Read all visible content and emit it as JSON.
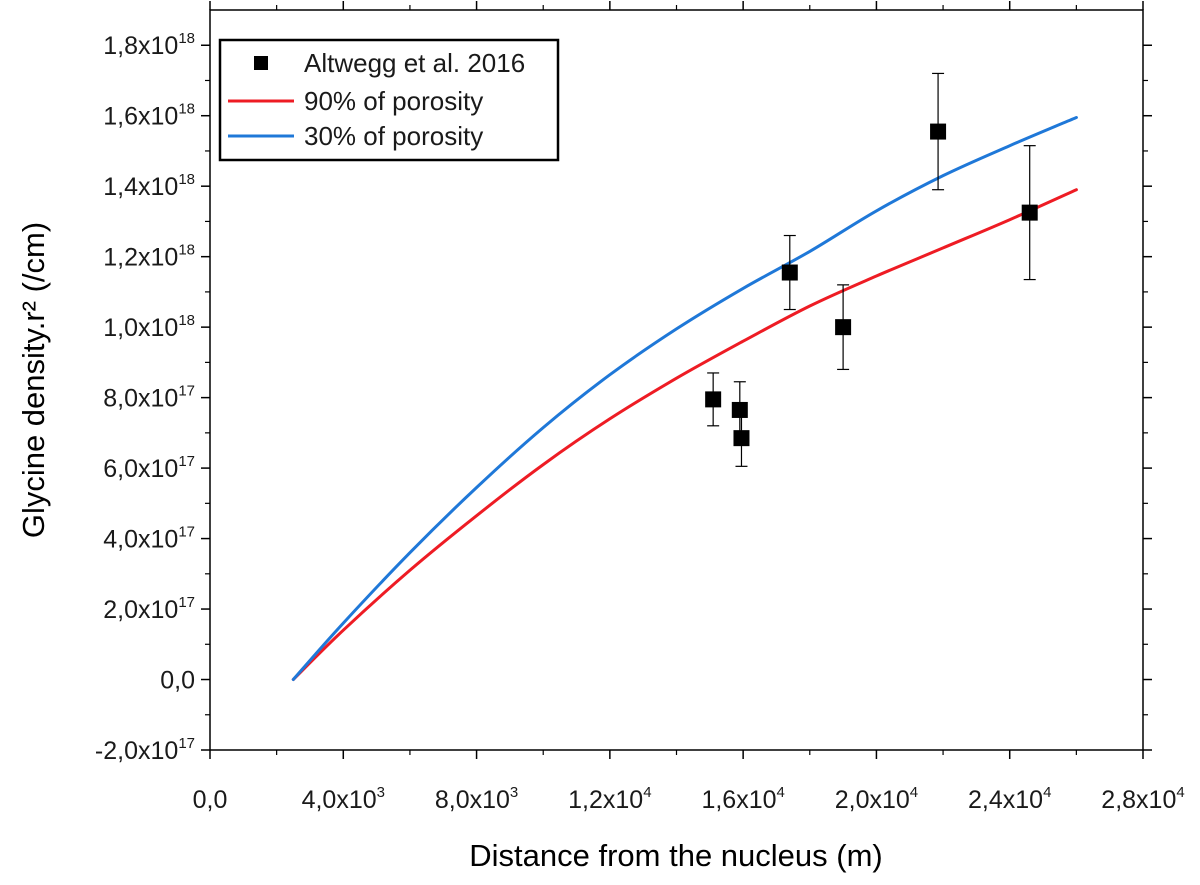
{
  "chart_data": {
    "type": "scatter",
    "xlabel": "Distance from the nucleus (m)",
    "ylabel": "Glycine density.r² (/cm)",
    "xlim": [
      0,
      28000
    ],
    "ylim": [
      -2e+17,
      1.9e+18
    ],
    "grid": false,
    "legend_position": "top-left",
    "x_ticks": [
      {
        "value": 0,
        "mant": "0,0",
        "exp": ""
      },
      {
        "value": 4000,
        "mant": "4,0x10",
        "exp": "3"
      },
      {
        "value": 8000,
        "mant": "8,0x10",
        "exp": "3"
      },
      {
        "value": 12000,
        "mant": "1,2x10",
        "exp": "4"
      },
      {
        "value": 16000,
        "mant": "1,6x10",
        "exp": "4"
      },
      {
        "value": 20000,
        "mant": "2,0x10",
        "exp": "4"
      },
      {
        "value": 24000,
        "mant": "2,4x10",
        "exp": "4"
      },
      {
        "value": 28000,
        "mant": "2,8x10",
        "exp": "4"
      }
    ],
    "y_ticks": [
      {
        "value": -2e+17,
        "mant": "-2,0x10",
        "exp": "17"
      },
      {
        "value": 0,
        "mant": "0,0",
        "exp": ""
      },
      {
        "value": 2e+17,
        "mant": "2,0x10",
        "exp": "17"
      },
      {
        "value": 4e+17,
        "mant": "4,0x10",
        "exp": "17"
      },
      {
        "value": 6e+17,
        "mant": "6,0x10",
        "exp": "17"
      },
      {
        "value": 8e+17,
        "mant": "8,0x10",
        "exp": "17"
      },
      {
        "value": 1e+18,
        "mant": "1,0x10",
        "exp": "18"
      },
      {
        "value": 1.2e+18,
        "mant": "1,2x10",
        "exp": "18"
      },
      {
        "value": 1.4e+18,
        "mant": "1,4x10",
        "exp": "18"
      },
      {
        "value": 1.6e+18,
        "mant": "1,6x10",
        "exp": "18"
      },
      {
        "value": 1.8e+18,
        "mant": "1,8x10",
        "exp": "18"
      }
    ],
    "series": [
      {
        "name": "Altwegg et al. 2016",
        "kind": "scatter",
        "marker": "square",
        "color": "#000000",
        "points": [
          {
            "x": 15100,
            "y": 7.95e+17,
            "err": 7.5e+16
          },
          {
            "x": 15900,
            "y": 7.65e+17,
            "err": 8e+16
          },
          {
            "x": 15950,
            "y": 6.85e+17,
            "err": 8e+16
          },
          {
            "x": 17400,
            "y": 1.155e+18,
            "err": 1.05e+17
          },
          {
            "x": 19000,
            "y": 1e+18,
            "err": 1.2e+17
          },
          {
            "x": 21850,
            "y": 1.555e+18,
            "err": 1.65e+17
          },
          {
            "x": 24600,
            "y": 1.325e+18,
            "err": 1.9e+17
          }
        ]
      },
      {
        "name": "90% of porosity",
        "kind": "line",
        "color": "#ee1c24",
        "x": [
          2500,
          4000,
          6000,
          8000,
          10000,
          12000,
          14000,
          16000,
          18000,
          20000,
          22000,
          24000,
          26000
        ],
        "y": [
          0,
          1.4e+17,
          3.1e+17,
          4.65e+17,
          6.1e+17,
          7.4e+17,
          8.55e+17,
          9.6e+17,
          1.06e+18,
          1.145e+18,
          1.225e+18,
          1.305e+18,
          1.39e+18
        ]
      },
      {
        "name": "30% of porosity",
        "kind": "line",
        "color": "#1f78d8",
        "x": [
          2500,
          4000,
          6000,
          8000,
          10000,
          12000,
          14000,
          16000,
          18000,
          20000,
          22000,
          24000,
          26000
        ],
        "y": [
          0,
          1.6e+17,
          3.6e+17,
          5.45e+17,
          7.15e+17,
          8.65e+17,
          9.95e+17,
          1.11e+18,
          1.215e+18,
          1.33e+18,
          1.43e+18,
          1.515e+18,
          1.595e+18
        ]
      }
    ]
  }
}
